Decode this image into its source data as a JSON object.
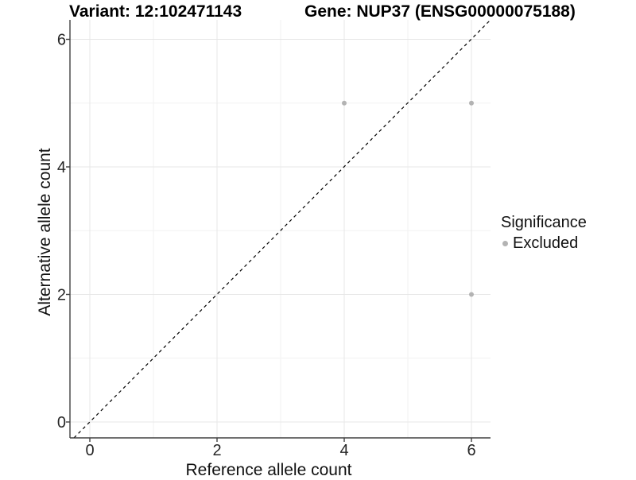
{
  "header": {
    "variant_title": "Variant: 12:102471143",
    "gene_title": "Gene: NUP37 (ENSG00000075188)"
  },
  "chart_data": {
    "type": "scatter",
    "xlabel": "Reference allele count",
    "ylabel": "Alternative allele count",
    "xlim": [
      -0.31,
      6.31
    ],
    "ylim": [
      -0.25,
      6.3
    ],
    "x_ticks": [
      0,
      2,
      4,
      6
    ],
    "y_ticks": [
      0,
      2,
      4,
      6
    ],
    "x_minor_ticks": [
      1,
      3,
      5
    ],
    "y_minor_ticks": [
      1,
      3,
      5
    ],
    "grid": "on",
    "legend_position": "right",
    "series": [
      {
        "name": "Excluded",
        "color": "#b3b3b3",
        "points": [
          [
            4,
            5
          ],
          [
            6,
            5
          ],
          [
            6,
            2
          ]
        ]
      }
    ],
    "reference_line": {
      "type": "identity",
      "style": "dashed",
      "color": "#000000"
    },
    "colors": {
      "axis": "#404040",
      "major_grid": "#e7e7e7",
      "minor_grid": "#f2f2f2"
    }
  },
  "legend": {
    "title": "Significance",
    "items": [
      {
        "label": "Excluded",
        "color": "#b3b3b3"
      }
    ]
  }
}
